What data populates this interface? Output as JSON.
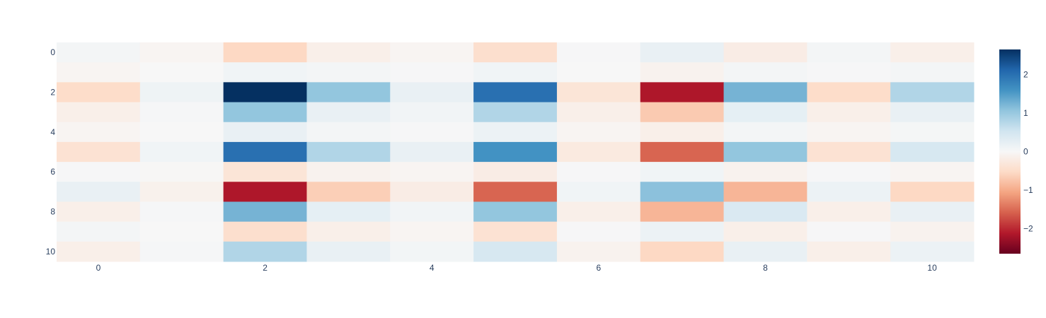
{
  "chart_data": {
    "type": "heatmap",
    "title": "",
    "xlabel": "",
    "ylabel": "",
    "x": [
      0,
      1,
      2,
      3,
      4,
      5,
      6,
      7,
      8,
      9,
      10
    ],
    "y": [
      0,
      1,
      2,
      3,
      4,
      5,
      6,
      7,
      8,
      9,
      10
    ],
    "x_tick_labels": [
      "0",
      "2",
      "4",
      "6",
      "8",
      "10"
    ],
    "y_tick_labels": [
      "0",
      "2",
      "4",
      "6",
      "8",
      "10"
    ],
    "z": [
      [
        0.05,
        -0.05,
        -0.55,
        -0.15,
        -0.05,
        -0.45,
        0.02,
        0.2,
        -0.2,
        0.05,
        -0.15
      ],
      [
        -0.05,
        0.0,
        0.1,
        0.05,
        0.02,
        0.1,
        0.0,
        -0.1,
        0.05,
        0.02,
        0.05
      ],
      [
        -0.5,
        0.12,
        2.65,
        1.05,
        0.2,
        2.0,
        -0.35,
        -2.15,
        1.25,
        -0.5,
        0.8
      ],
      [
        -0.15,
        0.03,
        1.05,
        0.2,
        0.08,
        0.8,
        -0.15,
        -0.7,
        0.25,
        -0.15,
        0.2
      ],
      [
        -0.05,
        0.0,
        0.2,
        0.05,
        0.02,
        0.15,
        -0.05,
        -0.15,
        0.05,
        -0.05,
        0.04
      ],
      [
        -0.4,
        0.1,
        2.0,
        0.8,
        0.2,
        1.6,
        -0.25,
        -1.55,
        1.05,
        -0.4,
        0.45
      ],
      [
        0.02,
        -0.02,
        -0.35,
        -0.1,
        -0.05,
        -0.2,
        0.02,
        0.1,
        -0.1,
        0.02,
        -0.05
      ],
      [
        0.2,
        -0.12,
        -2.15,
        -0.65,
        -0.2,
        -1.55,
        0.1,
        1.1,
        -0.9,
        0.15,
        -0.55
      ],
      [
        -0.15,
        0.03,
        1.25,
        0.25,
        0.08,
        1.05,
        -0.15,
        -0.9,
        0.4,
        -0.15,
        0.2
      ],
      [
        0.05,
        0.0,
        -0.45,
        -0.15,
        -0.05,
        -0.4,
        0.02,
        0.15,
        -0.15,
        0.02,
        -0.1
      ],
      [
        -0.15,
        0.03,
        0.8,
        0.2,
        0.07,
        0.45,
        -0.1,
        -0.55,
        0.2,
        -0.15,
        0.15
      ]
    ],
    "zmin": -2.65,
    "zmax": 2.65,
    "colorscale": "RdBu",
    "colorscale_stops": [
      "#67001f",
      "#b2182b",
      "#d6604d",
      "#f4a582",
      "#fddbc7",
      "#f7f7f7",
      "#d1e5f0",
      "#92c5de",
      "#4393c3",
      "#2166ac",
      "#053061"
    ],
    "colorbar_ticks": [
      2,
      1,
      0,
      -1,
      -2
    ],
    "colorbar_tick_labels": [
      "2",
      "1",
      "0",
      "−1",
      "−2"
    ],
    "grid": false,
    "legend": "none",
    "y_axis_reversed": true
  }
}
